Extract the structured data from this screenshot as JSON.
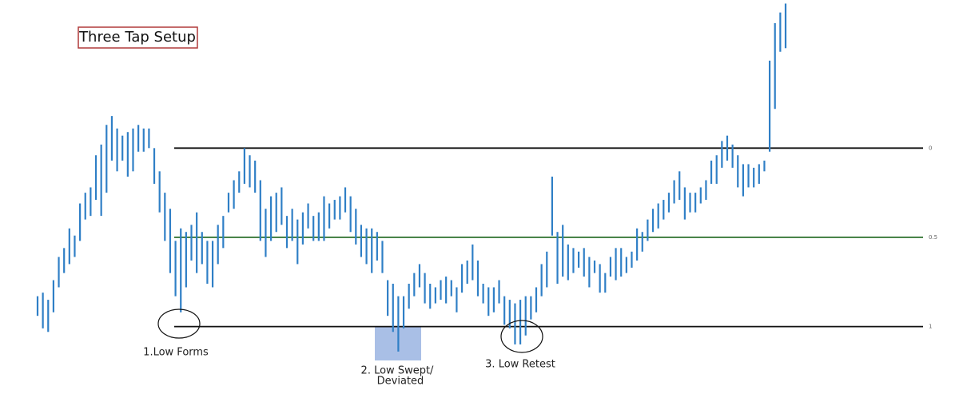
{
  "chart_data": {
    "type": "range-bar",
    "title": "Three Tap Setup",
    "annotations": [
      "1.Low Forms",
      "2. Low Swept/",
      "Deviated",
      "3. Low Retest"
    ],
    "color": "#2f7fc6",
    "ylim": [
      1.49,
      -0.83
    ],
    "yticks": [
      0,
      0.5,
      1
    ],
    "level_colors": [
      "#111111",
      "#3a7a3a",
      "#111111"
    ],
    "highs": [
      0.83,
      0.81,
      0.85,
      0.74,
      0.61,
      0.56,
      0.45,
      0.49,
      0.31,
      0.25,
      0.22,
      0.04,
      -0.02,
      -0.13,
      -0.18,
      -0.11,
      -0.07,
      -0.09,
      -0.11,
      -0.13,
      -0.11,
      -0.11,
      0.0,
      0.13,
      0.25,
      0.34,
      0.52,
      0.45,
      0.47,
      0.43,
      0.36,
      0.47,
      0.52,
      0.52,
      0.43,
      0.38,
      0.25,
      0.18,
      0.13,
      0.0,
      0.04,
      0.07,
      0.18,
      0.34,
      0.27,
      0.25,
      0.22,
      0.38,
      0.34,
      0.4,
      0.36,
      0.31,
      0.38,
      0.36,
      0.27,
      0.31,
      0.29,
      0.27,
      0.22,
      0.27,
      0.34,
      0.43,
      0.45,
      0.45,
      0.47,
      0.52,
      0.74,
      0.76,
      0.83,
      0.83,
      0.76,
      0.7,
      0.65,
      0.7,
      0.76,
      0.78,
      0.74,
      0.72,
      0.74,
      0.78,
      0.65,
      0.63,
      0.54,
      0.63,
      0.76,
      0.78,
      0.78,
      0.74,
      0.83,
      0.85,
      0.87,
      0.85,
      0.83,
      0.83,
      0.78,
      0.65,
      0.58,
      0.16,
      0.47,
      0.43,
      0.54,
      0.56,
      0.58,
      0.56,
      0.61,
      0.63,
      0.65,
      0.7,
      0.61,
      0.56,
      0.56,
      0.61,
      0.58,
      0.45,
      0.47,
      0.4,
      0.34,
      0.31,
      0.29,
      0.25,
      0.18,
      0.13,
      0.22,
      0.25,
      0.25,
      0.22,
      0.18,
      0.07,
      0.04,
      -0.04,
      -0.07,
      -0.02,
      0.04,
      0.09,
      0.09,
      0.11,
      0.09,
      0.07,
      -0.49,
      -0.7,
      -0.76,
      -0.81
    ],
    "lows": [
      0.94,
      1.01,
      1.03,
      0.92,
      0.78,
      0.7,
      0.65,
      0.61,
      0.52,
      0.4,
      0.38,
      0.29,
      0.38,
      0.25,
      0.07,
      0.13,
      0.07,
      0.16,
      0.13,
      0.02,
      0.02,
      0.0,
      0.2,
      0.36,
      0.52,
      0.7,
      0.83,
      0.92,
      0.78,
      0.63,
      0.7,
      0.65,
      0.76,
      0.78,
      0.65,
      0.56,
      0.36,
      0.34,
      0.25,
      0.2,
      0.22,
      0.25,
      0.52,
      0.61,
      0.52,
      0.47,
      0.43,
      0.56,
      0.52,
      0.65,
      0.54,
      0.45,
      0.52,
      0.52,
      0.52,
      0.45,
      0.4,
      0.4,
      0.36,
      0.47,
      0.54,
      0.61,
      0.65,
      0.7,
      0.63,
      0.7,
      0.94,
      1.03,
      1.14,
      1.01,
      0.9,
      0.83,
      0.78,
      0.87,
      0.9,
      0.87,
      0.85,
      0.87,
      0.83,
      0.92,
      0.81,
      0.76,
      0.74,
      0.83,
      0.87,
      0.94,
      0.92,
      0.87,
      0.99,
      1.01,
      1.1,
      1.1,
      1.05,
      0.96,
      0.92,
      0.83,
      0.78,
      0.49,
      0.76,
      0.72,
      0.74,
      0.7,
      0.67,
      0.72,
      0.78,
      0.7,
      0.81,
      0.81,
      0.72,
      0.74,
      0.72,
      0.7,
      0.67,
      0.63,
      0.58,
      0.52,
      0.47,
      0.45,
      0.4,
      0.36,
      0.31,
      0.29,
      0.4,
      0.36,
      0.36,
      0.31,
      0.29,
      0.2,
      0.2,
      0.11,
      0.07,
      0.11,
      0.22,
      0.27,
      0.22,
      0.22,
      0.2,
      0.13,
      0.02,
      -0.22,
      -0.54,
      -0.56
    ]
  }
}
